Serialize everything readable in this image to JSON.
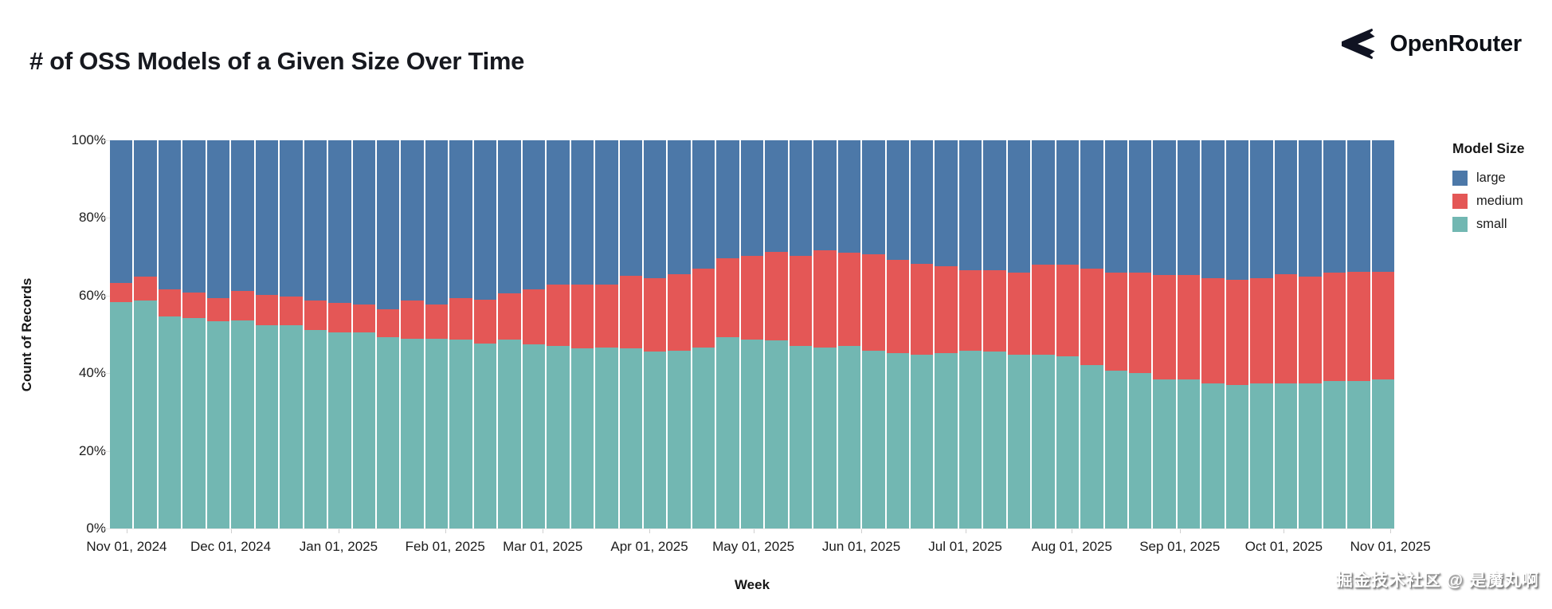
{
  "header": {
    "brand": "OpenRouter",
    "brand_icon": "openrouter-logo-icon",
    "brand_color": "#0d1017"
  },
  "watermark": "掘金技术社区 @ 是魔丸啊",
  "chart_data": {
    "type": "bar",
    "variant": "stacked-normalized",
    "title": "# of OSS Models of a Given Size Over Time",
    "xlabel": "Week",
    "ylabel": "Count of Records",
    "ylim": [
      0,
      100
    ],
    "y_unit": "%",
    "grid": true,
    "legend_position": "right",
    "stack_order_bottom_to_top": [
      "small",
      "medium",
      "large"
    ],
    "colors": {
      "large": "#4c78a8",
      "medium": "#e45756",
      "small": "#72b7b2"
    },
    "y_ticks": [
      "100%",
      "80%",
      "60%",
      "40%",
      "20%",
      "0%"
    ],
    "x_ticks": [
      {
        "label": "Nov 01, 2024",
        "pos_pct": 1.3
      },
      {
        "label": "Dec 01, 2024",
        "pos_pct": 9.4
      },
      {
        "label": "Jan 01, 2025",
        "pos_pct": 17.8
      },
      {
        "label": "Feb 01, 2025",
        "pos_pct": 26.1
      },
      {
        "label": "Mar 01, 2025",
        "pos_pct": 33.7
      },
      {
        "label": "Apr 01, 2025",
        "pos_pct": 42.0
      },
      {
        "label": "May 01, 2025",
        "pos_pct": 50.1
      },
      {
        "label": "Jun 01, 2025",
        "pos_pct": 58.5
      },
      {
        "label": "Jul 01, 2025",
        "pos_pct": 66.6
      },
      {
        "label": "Aug 01, 2025",
        "pos_pct": 74.9
      },
      {
        "label": "Sep 01, 2025",
        "pos_pct": 83.3
      },
      {
        "label": "Oct 01, 2025",
        "pos_pct": 91.4
      },
      {
        "label": "Nov 01, 2025",
        "pos_pct": 99.7
      }
    ],
    "legend": {
      "title": "Model Size",
      "entries": [
        {
          "label": "large",
          "color": "#4c78a8"
        },
        {
          "label": "medium",
          "color": "#e45756"
        },
        {
          "label": "small",
          "color": "#72b7b2"
        }
      ]
    },
    "weeks": [
      {
        "week": "2024-10-27",
        "small": 58.4,
        "medium": 4.8,
        "large": 36.8
      },
      {
        "week": "2024-11-03",
        "small": 58.8,
        "medium": 6.1,
        "large": 35.1
      },
      {
        "week": "2024-11-10",
        "small": 54.6,
        "medium": 6.9,
        "large": 38.5
      },
      {
        "week": "2024-11-17",
        "small": 54.3,
        "medium": 6.5,
        "large": 39.2
      },
      {
        "week": "2024-11-24",
        "small": 53.3,
        "medium": 6.1,
        "large": 40.6
      },
      {
        "week": "2024-12-01",
        "small": 53.6,
        "medium": 7.5,
        "large": 38.9
      },
      {
        "week": "2024-12-08",
        "small": 52.3,
        "medium": 7.8,
        "large": 39.9
      },
      {
        "week": "2024-12-15",
        "small": 52.3,
        "medium": 7.5,
        "large": 40.2
      },
      {
        "week": "2024-12-22",
        "small": 51.2,
        "medium": 7.5,
        "large": 41.3
      },
      {
        "week": "2024-12-29",
        "small": 50.5,
        "medium": 7.6,
        "large": 41.9
      },
      {
        "week": "2025-01-05",
        "small": 50.5,
        "medium": 7.2,
        "large": 42.3
      },
      {
        "week": "2025-01-12",
        "small": 49.2,
        "medium": 7.2,
        "large": 43.6
      },
      {
        "week": "2025-01-19",
        "small": 48.8,
        "medium": 9.9,
        "large": 41.3
      },
      {
        "week": "2025-01-26",
        "small": 48.8,
        "medium": 9.0,
        "large": 42.2
      },
      {
        "week": "2025-02-02",
        "small": 48.6,
        "medium": 10.8,
        "large": 40.6
      },
      {
        "week": "2025-02-09",
        "small": 47.7,
        "medium": 11.3,
        "large": 41.0
      },
      {
        "week": "2025-02-16",
        "small": 48.6,
        "medium": 11.9,
        "large": 39.5
      },
      {
        "week": "2025-02-23",
        "small": 47.5,
        "medium": 14.0,
        "large": 38.5
      },
      {
        "week": "2025-03-02",
        "small": 47.1,
        "medium": 15.8,
        "large": 37.1
      },
      {
        "week": "2025-03-09",
        "small": 46.5,
        "medium": 16.4,
        "large": 37.1
      },
      {
        "week": "2025-03-16",
        "small": 46.7,
        "medium": 16.2,
        "large": 37.1
      },
      {
        "week": "2025-03-23",
        "small": 46.5,
        "medium": 18.5,
        "large": 35.0
      },
      {
        "week": "2025-03-30",
        "small": 45.5,
        "medium": 19.0,
        "large": 35.5
      },
      {
        "week": "2025-04-06",
        "small": 45.7,
        "medium": 19.9,
        "large": 34.4
      },
      {
        "week": "2025-04-13",
        "small": 46.7,
        "medium": 20.3,
        "large": 33.0
      },
      {
        "week": "2025-04-20",
        "small": 49.2,
        "medium": 20.5,
        "large": 30.3
      },
      {
        "week": "2025-04-27",
        "small": 48.6,
        "medium": 21.7,
        "large": 29.7
      },
      {
        "week": "2025-05-04",
        "small": 48.5,
        "medium": 22.8,
        "large": 28.7
      },
      {
        "week": "2025-05-11",
        "small": 47.1,
        "medium": 23.2,
        "large": 29.7
      },
      {
        "week": "2025-05-18",
        "small": 46.7,
        "medium": 25.0,
        "large": 28.3
      },
      {
        "week": "2025-05-25",
        "small": 47.0,
        "medium": 24.1,
        "large": 28.9
      },
      {
        "week": "2025-06-01",
        "small": 45.7,
        "medium": 25.0,
        "large": 29.3
      },
      {
        "week": "2025-06-08",
        "small": 45.1,
        "medium": 24.2,
        "large": 30.7
      },
      {
        "week": "2025-06-15",
        "small": 44.7,
        "medium": 23.5,
        "large": 31.8
      },
      {
        "week": "2025-06-22",
        "small": 45.1,
        "medium": 22.5,
        "large": 32.4
      },
      {
        "week": "2025-06-29",
        "small": 45.7,
        "medium": 20.9,
        "large": 33.4
      },
      {
        "week": "2025-07-06",
        "small": 45.5,
        "medium": 21.1,
        "large": 33.4
      },
      {
        "week": "2025-07-13",
        "small": 44.7,
        "medium": 21.2,
        "large": 34.1
      },
      {
        "week": "2025-07-20",
        "small": 44.7,
        "medium": 23.3,
        "large": 32.0
      },
      {
        "week": "2025-07-27",
        "small": 44.4,
        "medium": 23.6,
        "large": 32.0
      },
      {
        "week": "2025-08-03",
        "small": 42.0,
        "medium": 25.0,
        "large": 33.0
      },
      {
        "week": "2025-08-10",
        "small": 40.6,
        "medium": 25.4,
        "large": 34.0
      },
      {
        "week": "2025-08-17",
        "small": 40.0,
        "medium": 26.0,
        "large": 34.0
      },
      {
        "week": "2025-08-24",
        "small": 38.3,
        "medium": 26.9,
        "large": 34.8
      },
      {
        "week": "2025-08-31",
        "small": 38.3,
        "medium": 26.9,
        "large": 34.8
      },
      {
        "week": "2025-09-07",
        "small": 37.3,
        "medium": 27.2,
        "large": 35.5
      },
      {
        "week": "2025-09-14",
        "small": 36.9,
        "medium": 27.1,
        "large": 36.0
      },
      {
        "week": "2025-09-21",
        "small": 37.3,
        "medium": 27.2,
        "large": 35.5
      },
      {
        "week": "2025-09-28",
        "small": 37.3,
        "medium": 28.2,
        "large": 34.5
      },
      {
        "week": "2025-10-05",
        "small": 37.3,
        "medium": 27.6,
        "large": 35.1
      },
      {
        "week": "2025-10-12",
        "small": 37.9,
        "medium": 28.1,
        "large": 34.0
      },
      {
        "week": "2025-10-19",
        "small": 38.0,
        "medium": 28.2,
        "large": 33.8
      },
      {
        "week": "2025-10-26",
        "small": 38.3,
        "medium": 27.9,
        "large": 33.8
      }
    ]
  }
}
